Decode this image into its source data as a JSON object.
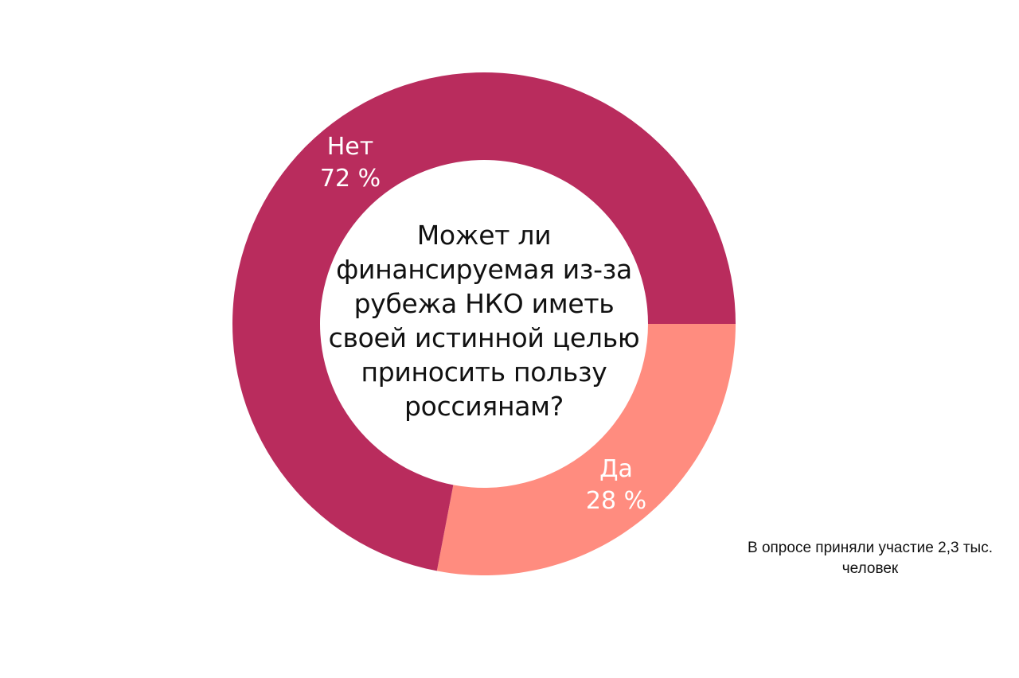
{
  "chart_data": {
    "type": "pie",
    "donut": true,
    "center_text": "Может ли финансируемая из-за рубежа НКО иметь своей истинной целью приносить пользу россиянам?",
    "slices": [
      {
        "label": "Нет",
        "value": 72,
        "value_label": "72 %",
        "color": "#B92C5D"
      },
      {
        "label": "Да",
        "value": 28,
        "value_label": "28 %",
        "color": "#FF8C7F"
      }
    ],
    "note": "В опросе приняли участие 2,3 тыс. человек"
  }
}
